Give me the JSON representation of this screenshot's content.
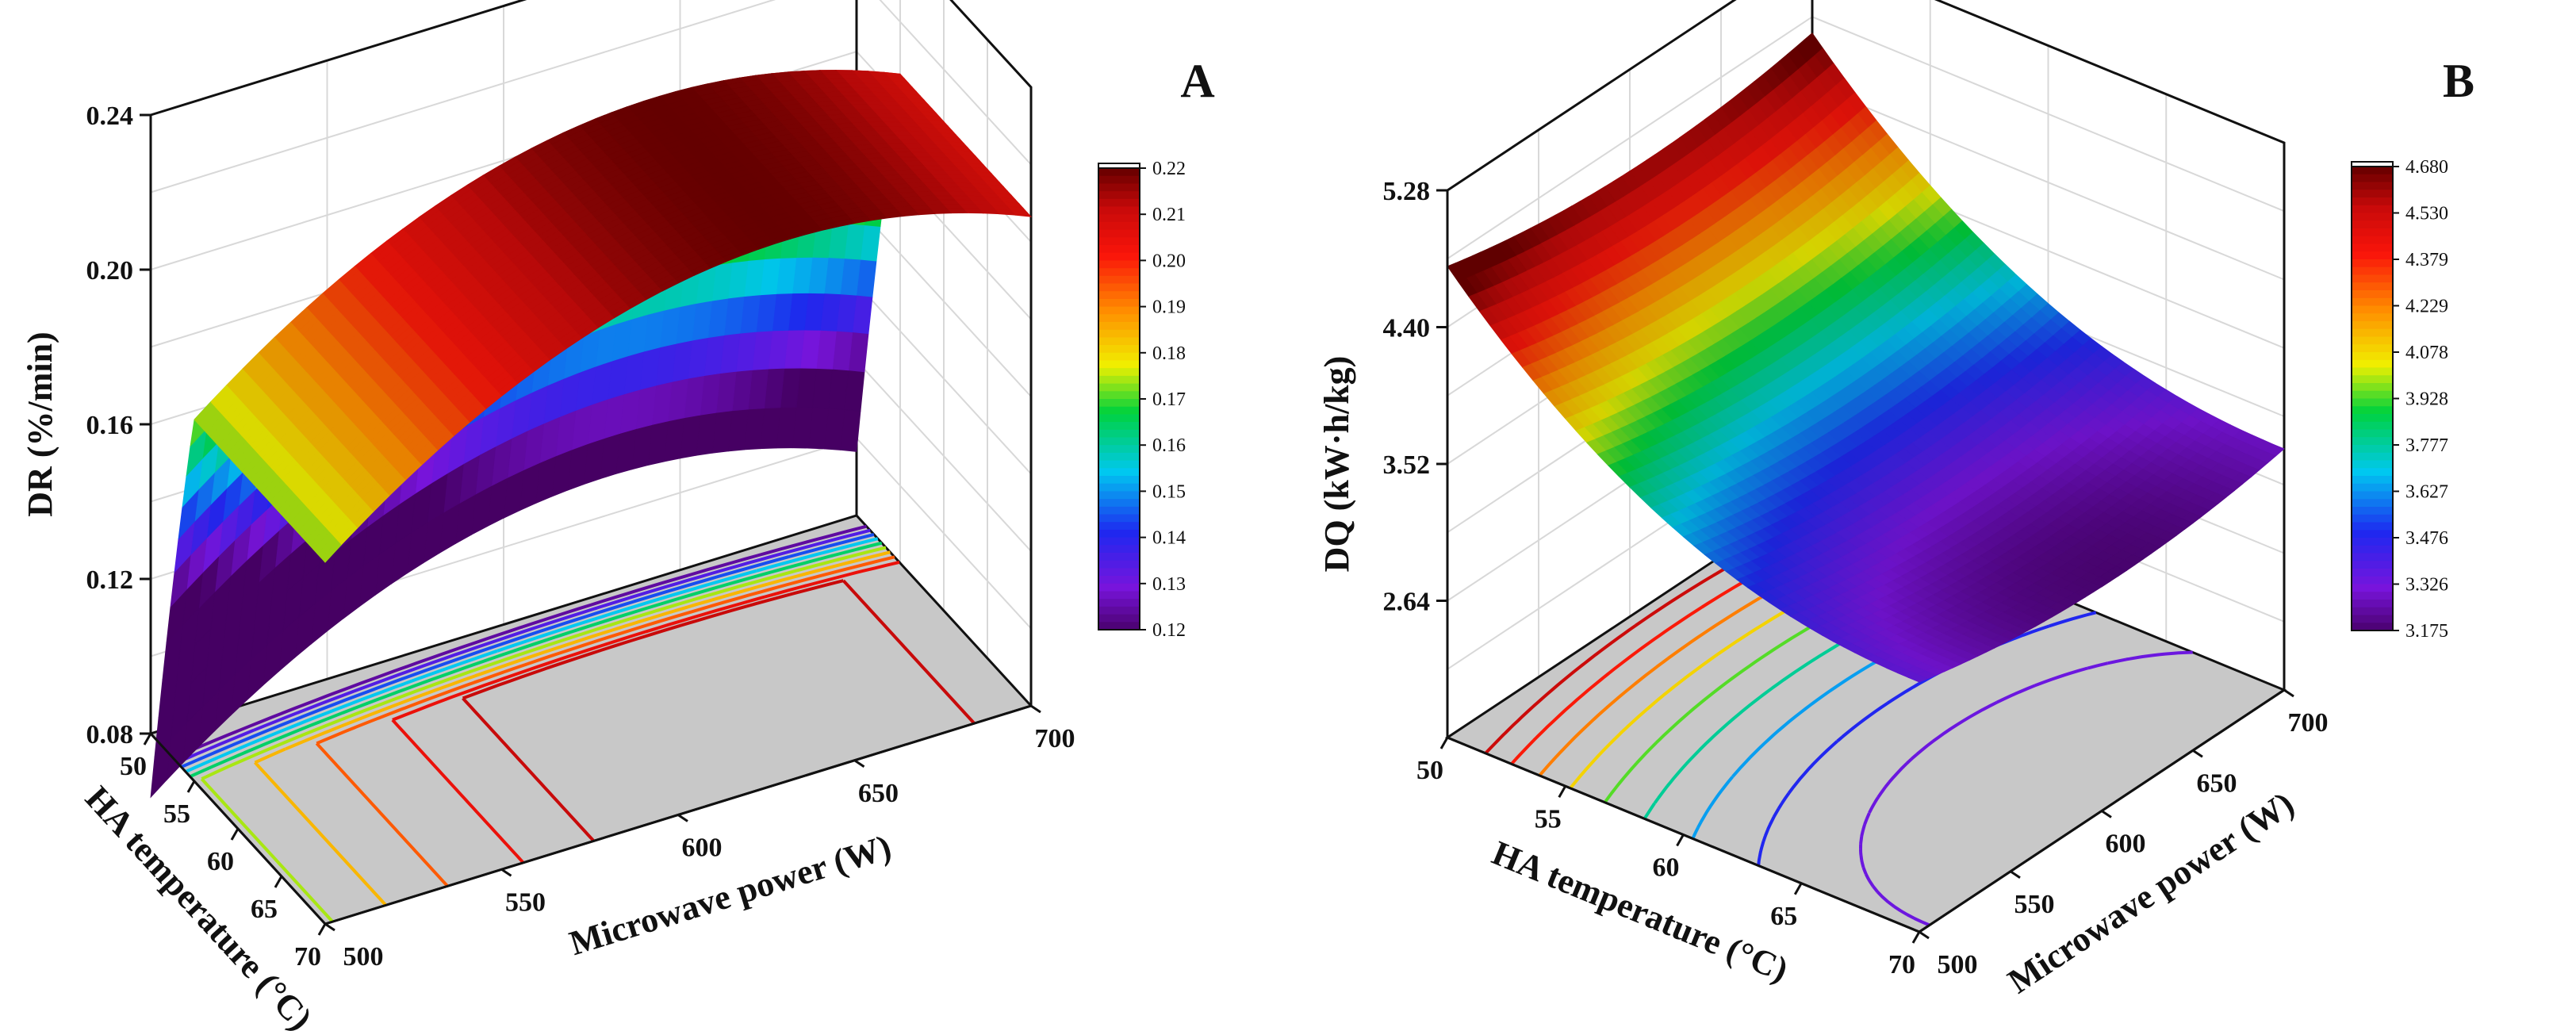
{
  "chart_data": [
    {
      "type": "surface3d",
      "panel_label": "A",
      "x": {
        "label": "HA temperature (°C)",
        "range": [
          50,
          70
        ],
        "ticks": [
          "50",
          "55",
          "60",
          "65",
          "70"
        ]
      },
      "y": {
        "label": "Microwave power (W)",
        "range": [
          500,
          700
        ],
        "ticks": [
          "500",
          "550",
          "600",
          "650",
          "700"
        ]
      },
      "z": {
        "label": "DR (%/min)",
        "range": [
          0.08,
          0.24
        ],
        "ticks": [
          "0.08",
          "0.12",
          "0.16",
          "0.20",
          "0.24"
        ]
      },
      "model": {
        "a": 0.22,
        "bx": 2.35,
        "cx": 0.045,
        "dy": 0.06,
        "ey": 0.05,
        "centerY": 630,
        "spanY": 200
      },
      "colorbar": {
        "ticks": [
          "0.22",
          "0.21",
          "0.20",
          "0.19",
          "0.18",
          "0.17",
          "0.16",
          "0.15",
          "0.14",
          "0.13",
          "0.12"
        ],
        "min": 0.12,
        "max": 0.22
      },
      "contour_levels": [
        0.125,
        0.135,
        0.145,
        0.155,
        0.165,
        0.175,
        0.185,
        0.195,
        0.205,
        0.212
      ]
    },
    {
      "type": "surface3d",
      "panel_label": "B",
      "x": {
        "label": "HA temperature (°C)",
        "range": [
          50,
          70
        ],
        "ticks": [
          "50",
          "55",
          "60",
          "65",
          "70"
        ]
      },
      "y": {
        "label": "Microwave power (W)",
        "range": [
          500,
          700
        ],
        "ticks": [
          "500",
          "550",
          "600",
          "650",
          "700"
        ]
      },
      "z": {
        "label": "DQ (kW·h/kg)",
        "range": [
          1.76,
          5.28
        ],
        "ticks": [
          "2.64",
          "3.52",
          "4.40",
          "5.28"
        ]
      },
      "model": {
        "a": 3.22,
        "bx": 1.5,
        "cx": 0.2,
        "dy": 0.25,
        "ey": 0.18,
        "centerY": 610,
        "spanY": 200
      },
      "colorbar": {
        "ticks": [
          "4.680",
          "4.530",
          "4.379",
          "4.229",
          "4.078",
          "3.928",
          "3.777",
          "3.627",
          "3.476",
          "3.326",
          "3.175"
        ],
        "min": 3.175,
        "max": 4.68
      },
      "contour_levels": [
        4.55,
        4.4,
        4.25,
        4.1,
        3.95,
        3.8,
        3.65,
        3.5,
        3.35
      ]
    }
  ]
}
